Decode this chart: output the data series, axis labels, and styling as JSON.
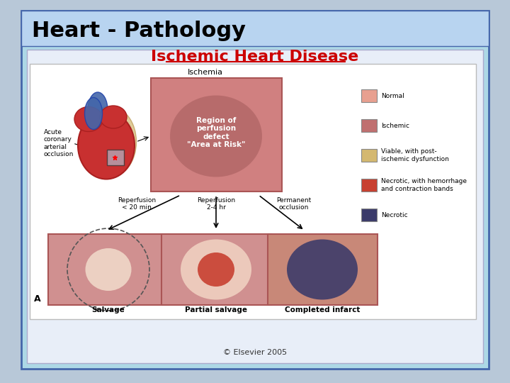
{
  "title": "Heart - Pathology",
  "subtitle": "Ischemic Heart Disease",
  "background_outer": "#b8c8d8",
  "background_slide": "#add8e6",
  "title_color": "#000000",
  "subtitle_color": "#cc0000",
  "title_fontsize": 22,
  "subtitle_fontsize": 16,
  "copyright": "© Elsevier 2005",
  "legend_items": [
    {
      "label": "Normal",
      "color": "#e8a090"
    },
    {
      "label": "Ischemic",
      "color": "#c07070"
    },
    {
      "label": "Viable, with post-\nischemic dysfunction",
      "color": "#d4b870"
    },
    {
      "label": "Necrotic, with hemorrhage\nand contraction bands",
      "color": "#c84030"
    },
    {
      "label": "Necrotic",
      "color": "#3a3a6a"
    }
  ],
  "ischemia_box_color": "#d08080",
  "ischemia_spot_color": "#a05858",
  "salvage_bg": "#d09090",
  "salvage_spot_color": "#f0d8c8",
  "partial_bg": "#d09090",
  "partial_spot1": "#f0d0c0",
  "partial_spot2": "#c84030",
  "completed_bg": "#c88878",
  "completed_spot": "#3a3a6a",
  "label_reperfusion1": "Reperfusion\n< 20 min",
  "label_reperfusion2": "Reperfusion\n2-4 hr",
  "label_permanent": "Permanent\nocclusion",
  "label_salvage": "Salvage",
  "label_partial": "Partial salvage",
  "label_completed": "Completed infarct",
  "label_ischemia": "Ischemia",
  "label_region": "Region of\nperfusion\ndefect\n\"Area at Risk\"",
  "label_acute": "Acute\ncoronary\narterial\nocclusion"
}
